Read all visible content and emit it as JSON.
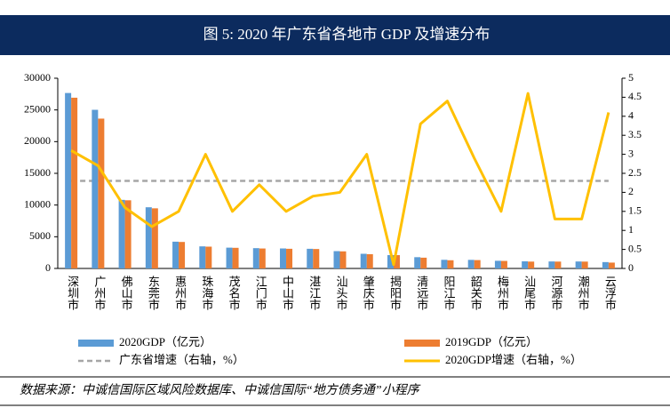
{
  "chart_data": {
    "type": "bar",
    "title": "图 5:   2020 年广东省各地市 GDP 及增速分布",
    "categories": [
      "深圳市",
      "广州市",
      "佛山市",
      "东莞市",
      "惠州市",
      "珠海市",
      "茂名市",
      "江门市",
      "中山市",
      "湛江市",
      "汕头市",
      "肇庆市",
      "揭阳市",
      "清远市",
      "阳江市",
      "韶关市",
      "梅州市",
      "汕尾市",
      "河源市",
      "潮州市",
      "云浮市"
    ],
    "series": [
      {
        "name": "2020GDP（亿元）",
        "type": "bar",
        "color": "#5b9bd5",
        "values": [
          27670,
          25019,
          10816,
          9650,
          4222,
          3482,
          3279,
          3201,
          3152,
          3100,
          2730,
          2312,
          2102,
          1777,
          1361,
          1353,
          1208,
          1123,
          1102,
          1097,
          1002
        ]
      },
      {
        "name": "2019GDP（亿元）",
        "type": "bar",
        "color": "#ed7d31",
        "values": [
          26927,
          23629,
          10751,
          9482,
          4177,
          3436,
          3252,
          3146,
          3101,
          3064,
          2694,
          2248,
          2102,
          1698,
          1292,
          1318,
          1187,
          1080,
          1080,
          1080,
          921
        ]
      },
      {
        "name": "2020GDP增速（右轴，%）",
        "type": "line",
        "axis": "y2",
        "color": "#ffc000",
        "values": [
          3.1,
          2.7,
          1.6,
          1.1,
          1.5,
          3.0,
          1.5,
          2.2,
          1.5,
          1.9,
          2.0,
          3.0,
          0.1,
          3.8,
          4.4,
          2.9,
          1.5,
          4.6,
          1.3,
          1.3,
          4.1
        ]
      }
    ],
    "reference_line": {
      "name": "广东省增速（右轴，%）",
      "axis": "y2",
      "color": "#a6a6a6",
      "value": 2.3
    },
    "ylim": [
      0,
      30000
    ],
    "yticks": [
      0,
      5000,
      10000,
      15000,
      20000,
      25000,
      30000
    ],
    "y2lim": [
      0,
      5
    ],
    "y2ticks": [
      0,
      0.5,
      1,
      1.5,
      2,
      2.5,
      3,
      3.5,
      4,
      4.5,
      5
    ],
    "source": "数据来源：中诚信国际区域风险数据库、中诚信国际“地方债务通”小程序"
  }
}
